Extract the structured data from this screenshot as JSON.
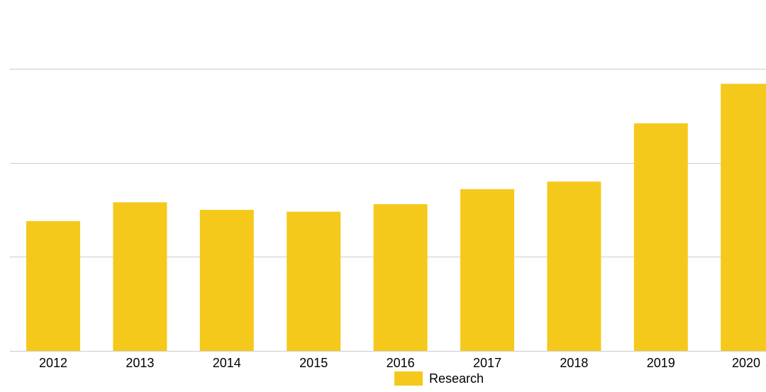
{
  "chart_data": {
    "type": "bar",
    "categories": [
      "2012",
      "2013",
      "2014",
      "2015",
      "2016",
      "2017",
      "2018",
      "2019",
      "2020"
    ],
    "series": [
      {
        "name": "Research",
        "values": [
          138,
          158,
          150,
          148,
          156,
          172,
          180,
          242,
          284
        ],
        "color": "#f5c91c"
      }
    ],
    "title": "",
    "xlabel": "",
    "ylabel": "",
    "ylim": [
      0,
      300
    ],
    "yticks_labeled": false,
    "grid": true,
    "legend_position": "bottom"
  }
}
